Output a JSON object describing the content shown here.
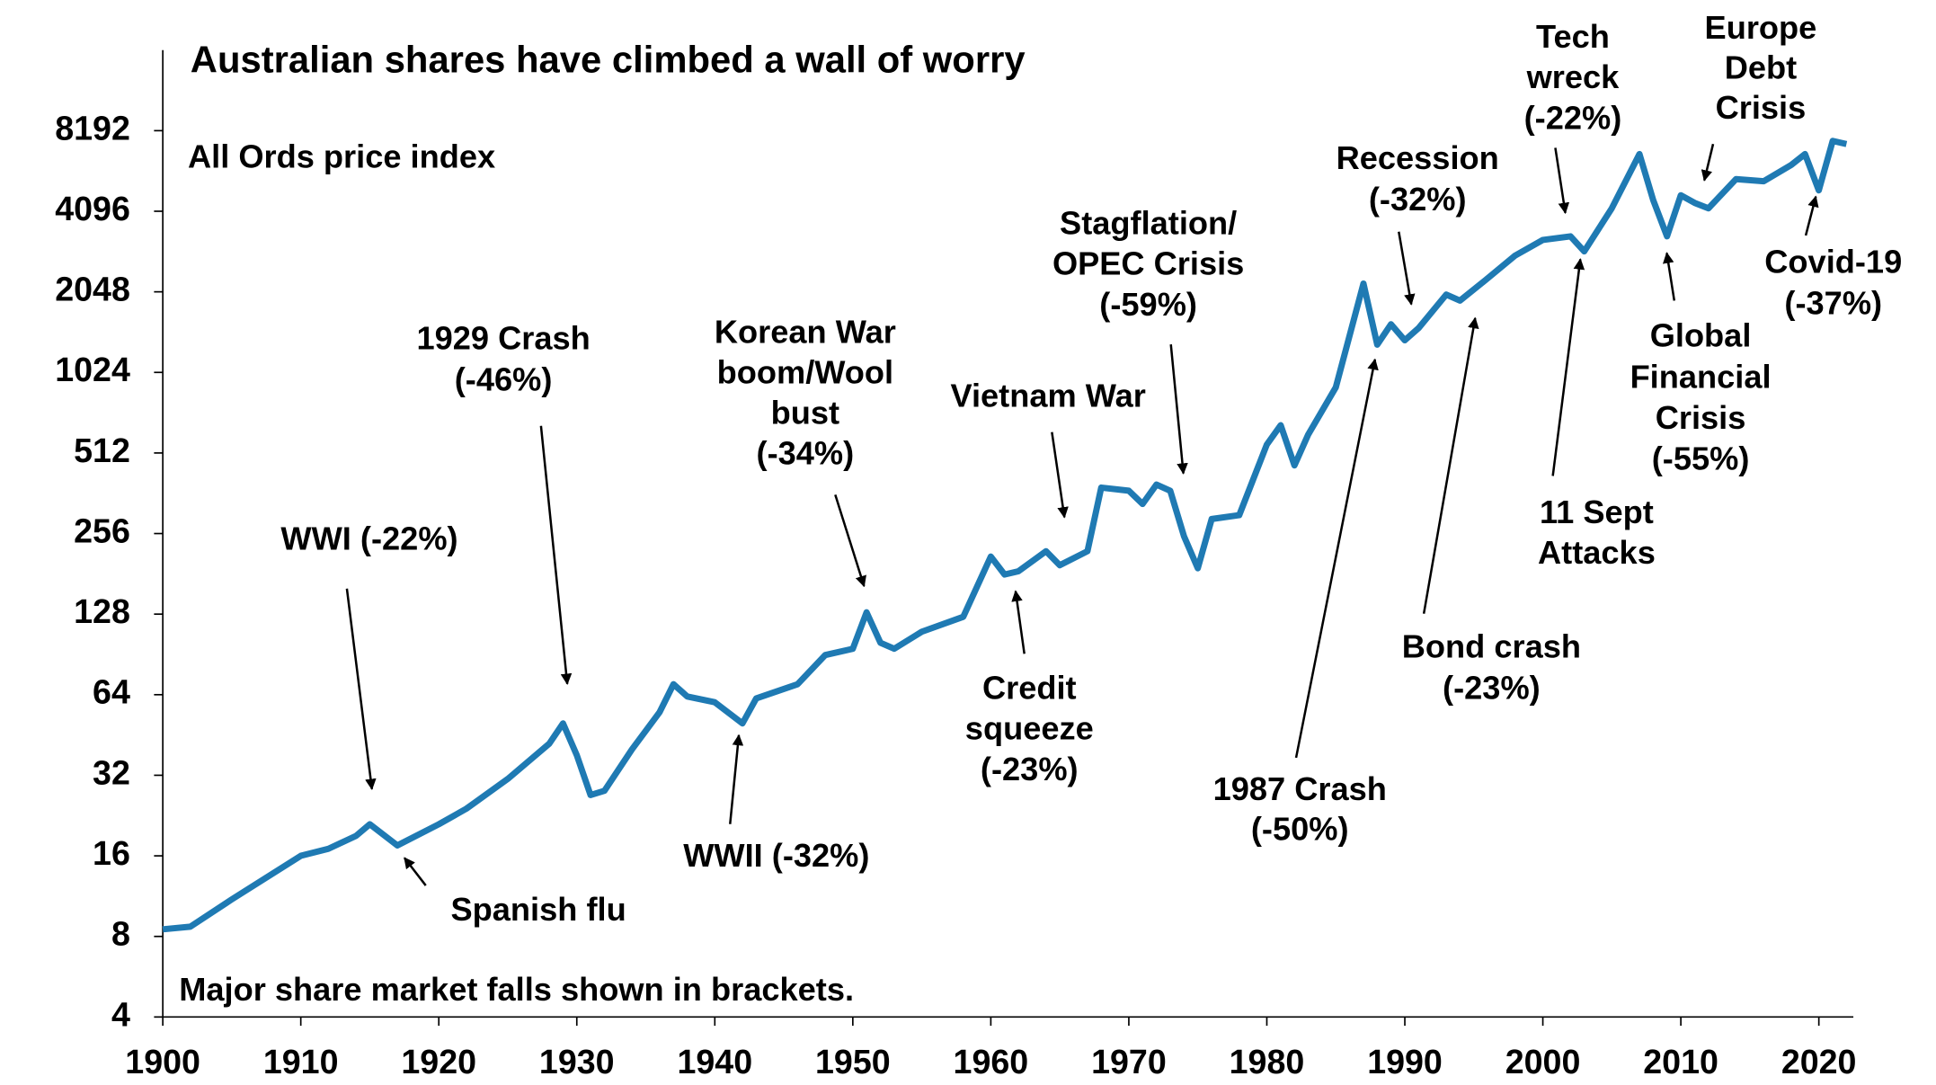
{
  "chart_data": {
    "type": "line",
    "title": "Australian shares have climbed a wall of worry",
    "subtitle": "All Ords price index",
    "footnote": "Major share market falls shown in brackets.",
    "x": [
      1900,
      1902,
      1905,
      1910,
      1912,
      1914,
      1915,
      1917,
      1920,
      1922,
      1925,
      1928,
      1929,
      1930,
      1931,
      1932,
      1934,
      1936,
      1937,
      1938,
      1940,
      1942,
      1943,
      1946,
      1948,
      1950,
      1951,
      1952,
      1953,
      1955,
      1958,
      1960,
      1961,
      1962,
      1964,
      1965,
      1967,
      1968,
      1970,
      1971,
      1972,
      1973,
      1974,
      1975,
      1976,
      1978,
      1980,
      1981,
      1982,
      1983,
      1985,
      1987,
      1988,
      1989,
      1990,
      1991,
      1993,
      1994,
      1996,
      1998,
      2000,
      2002,
      2003,
      2005,
      2007,
      2008,
      2009,
      2010,
      2011,
      2012,
      2014,
      2016,
      2018,
      2019,
      2020,
      2021,
      2022
    ],
    "values": [
      8.5,
      8.7,
      11,
      16,
      17,
      19,
      21,
      17.5,
      21,
      24,
      31,
      42,
      50,
      38,
      27,
      28,
      40,
      55,
      70,
      63,
      60,
      50,
      62,
      70,
      90,
      95,
      130,
      100,
      95,
      110,
      125,
      210,
      180,
      185,
      220,
      195,
      220,
      380,
      370,
      330,
      390,
      370,
      250,
      190,
      290,
      300,
      550,
      650,
      460,
      600,
      900,
      2200,
      1300,
      1550,
      1350,
      1500,
      2000,
      1900,
      2300,
      2800,
      3200,
      3300,
      2900,
      4200,
      6700,
      4500,
      3300,
      4700,
      4400,
      4200,
      5400,
      5300,
      6100,
      6700,
      4900,
      7500,
      7300
    ],
    "color": "#1f7ab3",
    "log_scale": true,
    "xlim": [
      1900,
      2022.5
    ],
    "ylim": [
      4,
      16384
    ],
    "xticks": [
      1900,
      1910,
      1920,
      1930,
      1940,
      1950,
      1960,
      1970,
      1980,
      1990,
      2000,
      2010,
      2020
    ],
    "yticks": [
      4,
      8,
      16,
      32,
      64,
      128,
      256,
      512,
      1024,
      2048,
      4096,
      8192
    ],
    "annotations": [
      [
        "WWI (-22%)"
      ],
      [
        "1929 Crash",
        "(-46%)"
      ],
      [
        "Spanish flu"
      ],
      [
        "Korean War",
        "boom/Wool",
        "bust",
        "(-34%)"
      ],
      [
        "WWII (-32%)"
      ],
      [
        "Vietnam War"
      ],
      [
        "Credit",
        "squeeze",
        "(-23%)"
      ],
      [
        "Stagflation/",
        "OPEC Crisis",
        "(-59%)"
      ],
      [
        "1987 Crash",
        "(-50%)"
      ],
      [
        "Recession",
        "(-32%)"
      ],
      [
        "Bond crash",
        "(-23%)"
      ],
      [
        "Tech",
        "wreck",
        "(-22%)"
      ],
      [
        "11 Sept",
        "Attacks"
      ],
      [
        "Europe",
        "Debt",
        "Crisis"
      ],
      [
        "Global",
        "Financial",
        "Crisis",
        "(-55%)"
      ],
      [
        "Covid-19",
        "(-37%)"
      ]
    ]
  }
}
